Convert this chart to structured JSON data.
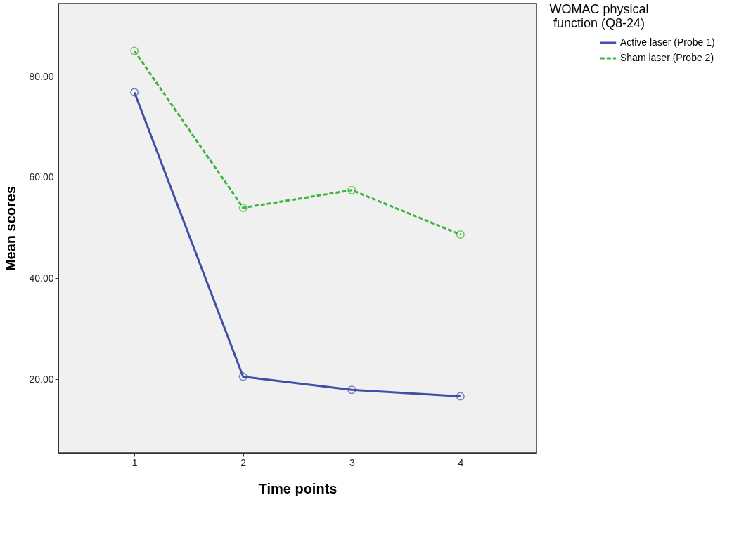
{
  "chart_data": {
    "type": "line",
    "xlabel": "Time points",
    "ylabel": "Mean scores",
    "legend_title": "WOMAC physical function (Q8-24)",
    "x": [
      1,
      2,
      3,
      4
    ],
    "series": [
      {
        "name": "Active laser (Probe 1)",
        "color": "#3f4fa8",
        "values": [
          76.9,
          20.5,
          17.9,
          16.6
        ],
        "line_style": "solid"
      },
      {
        "name": "Sham laser (Probe 2)",
        "color": "#3cb43c",
        "values": [
          85.1,
          54.0,
          57.5,
          48.7
        ],
        "line_style": "dashed"
      }
    ],
    "xlim": [
      0.3,
      4.7
    ],
    "xticks": [
      1,
      2,
      3,
      4
    ],
    "ylim": [
      5.4,
      94.5
    ],
    "yticks": [
      {
        "value": 20,
        "label": "20.00"
      },
      {
        "value": 40,
        "label": "40.00"
      },
      {
        "value": 60,
        "label": "60.00"
      },
      {
        "value": 80,
        "label": "80.00"
      }
    ],
    "marker": "circle",
    "legend": "top right",
    "grid": false
  }
}
